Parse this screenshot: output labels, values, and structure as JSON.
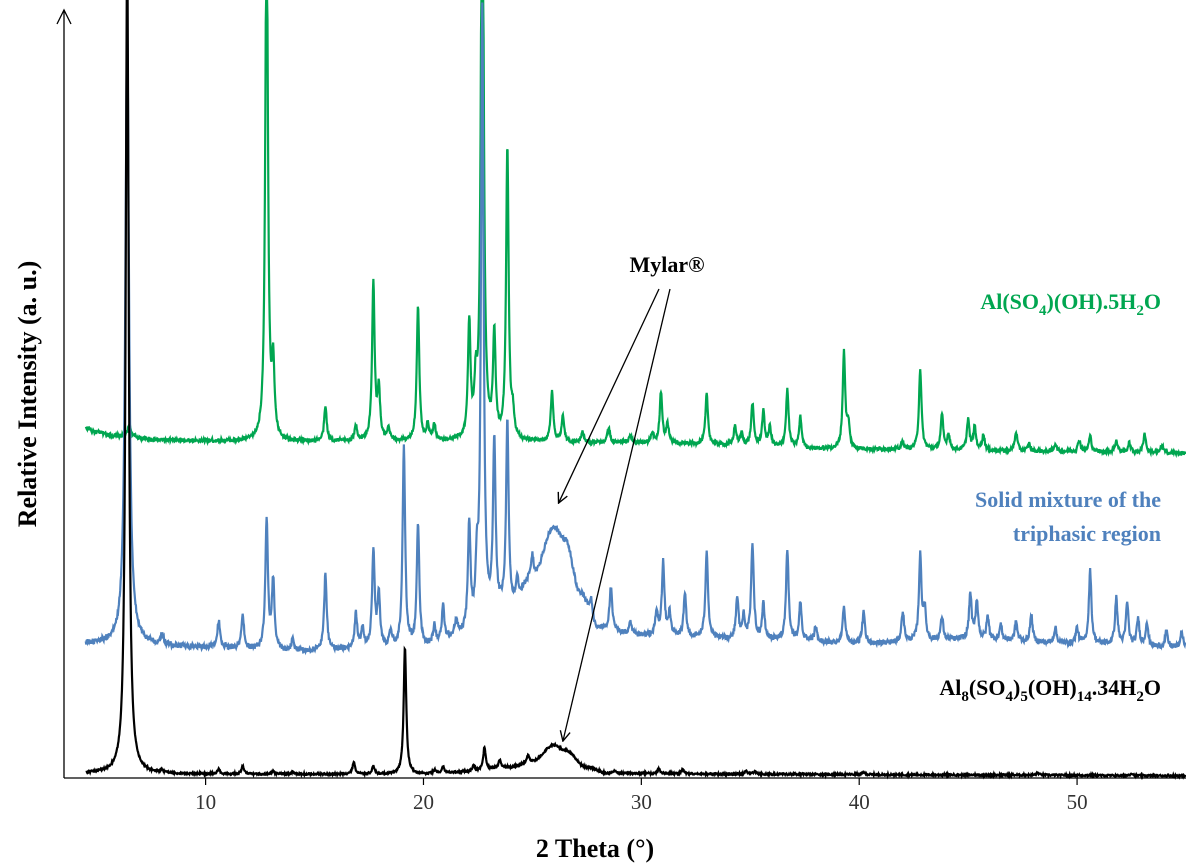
{
  "chart_data": {
    "type": "line",
    "xlabel": "2 Theta (°)",
    "ylabel": "Relative Intensity (a. u.)",
    "xlim": [
      3.5,
      55
    ],
    "ylim": [
      0,
      100
    ],
    "x_ticks": [
      10,
      20,
      30,
      40,
      50
    ],
    "y_ticks": [],
    "grid": false,
    "legend": "none",
    "series": [
      {
        "name": "Al(SO4)(OH).5H2O",
        "color": "#00a650",
        "baseline": [
          [
            4.5,
            45.6
          ],
          [
            5,
            45.0
          ],
          [
            6,
            44.5
          ],
          [
            8,
            44.0
          ],
          [
            10,
            43.9
          ],
          [
            12,
            43.8
          ],
          [
            20,
            43.8
          ],
          [
            30,
            43.6
          ],
          [
            40,
            42.8
          ],
          [
            50,
            42.5
          ],
          [
            55,
            42.3
          ]
        ],
        "noise": 0.25,
        "peaks": [
          [
            6.5,
            1.6,
            0.08
          ],
          [
            12.8,
            72,
            0.07
          ],
          [
            13.1,
            9,
            0.07
          ],
          [
            15.5,
            4.5,
            0.07
          ],
          [
            16.9,
            2,
            0.07
          ],
          [
            17.7,
            20.5,
            0.07
          ],
          [
            17.95,
            6.5,
            0.07
          ],
          [
            18.4,
            1.5,
            0.07
          ],
          [
            19.75,
            17.5,
            0.07
          ],
          [
            20.2,
            2,
            0.07
          ],
          [
            20.5,
            2,
            0.07
          ],
          [
            22.1,
            15,
            0.07
          ],
          [
            22.4,
            6,
            0.07
          ],
          [
            22.7,
            90,
            0.07
          ],
          [
            23.25,
            13.5,
            0.07
          ],
          [
            23.85,
            38,
            0.07
          ],
          [
            24.1,
            3,
            0.07
          ],
          [
            25.9,
            6.5,
            0.07
          ],
          [
            26.4,
            3.5,
            0.07
          ],
          [
            27.3,
            1.5,
            0.07
          ],
          [
            28.5,
            2.0,
            0.07
          ],
          [
            29.5,
            1.0,
            0.07
          ],
          [
            30.5,
            1.2,
            0.07
          ],
          [
            30.9,
            6.5,
            0.07
          ],
          [
            31.2,
            2.5,
            0.07
          ],
          [
            33.0,
            6.5,
            0.07
          ],
          [
            34.3,
            2.5,
            0.07
          ],
          [
            34.6,
            1.5,
            0.07
          ],
          [
            35.1,
            5.5,
            0.07
          ],
          [
            35.6,
            4.5,
            0.07
          ],
          [
            35.9,
            2.5,
            0.07
          ],
          [
            36.7,
            7.5,
            0.07
          ],
          [
            37.3,
            4.0,
            0.07
          ],
          [
            39.3,
            12.5,
            0.07
          ],
          [
            39.5,
            3.0,
            0.07
          ],
          [
            42.0,
            1.0,
            0.07
          ],
          [
            42.8,
            10.5,
            0.07
          ],
          [
            43.8,
            4.5,
            0.07
          ],
          [
            44.1,
            2.0,
            0.07
          ],
          [
            45.0,
            4.0,
            0.07
          ],
          [
            45.3,
            3.0,
            0.07
          ],
          [
            45.7,
            2.0,
            0.07
          ],
          [
            47.2,
            2.5,
            0.07
          ],
          [
            47.8,
            1.0,
            0.07
          ],
          [
            49.0,
            1.0,
            0.07
          ],
          [
            50.1,
            1.5,
            0.07
          ],
          [
            50.6,
            2.0,
            0.07
          ],
          [
            51.8,
            1.5,
            0.07
          ],
          [
            52.4,
            1.2,
            0.07
          ],
          [
            53.1,
            2.5,
            0.07
          ],
          [
            53.9,
            1.0,
            0.07
          ]
        ]
      },
      {
        "name": "Solid mixture of the triphasic region",
        "color": "#4f81bd",
        "baseline": [
          [
            4.5,
            17.5
          ],
          [
            6,
            17.5
          ],
          [
            10,
            17.0
          ],
          [
            14,
            16.5
          ],
          [
            18,
            16.8
          ],
          [
            20,
            17.0
          ],
          [
            22,
            18.5
          ],
          [
            24,
            22.0
          ],
          [
            25,
            26.0
          ],
          [
            26.0,
            32.5
          ],
          [
            26.5,
            31.0
          ],
          [
            27.2,
            24.0
          ],
          [
            28,
            19.5
          ],
          [
            30,
            18.5
          ],
          [
            35,
            18.0
          ],
          [
            40,
            17.5
          ],
          [
            45,
            18.0
          ],
          [
            50,
            17.5
          ],
          [
            55,
            17.0
          ]
        ],
        "noise": 0.35,
        "peaks": [
          [
            6.4,
            80,
            0.1
          ],
          [
            8.0,
            1.5,
            0.07
          ],
          [
            10.6,
            3.5,
            0.07
          ],
          [
            11.7,
            4.5,
            0.07
          ],
          [
            12.8,
            17,
            0.07
          ],
          [
            13.1,
            9,
            0.07
          ],
          [
            14.0,
            1.5,
            0.07
          ],
          [
            15.5,
            10,
            0.07
          ],
          [
            16.9,
            4.5,
            0.07
          ],
          [
            17.2,
            2.5,
            0.07
          ],
          [
            17.7,
            12.5,
            0.07
          ],
          [
            17.95,
            7,
            0.07
          ],
          [
            18.5,
            2,
            0.07
          ],
          [
            19.1,
            26,
            0.07
          ],
          [
            19.75,
            16,
            0.07
          ],
          [
            20.5,
            2.5,
            0.07
          ],
          [
            20.9,
            4.5,
            0.07
          ],
          [
            21.5,
            2,
            0.07
          ],
          [
            22.1,
            14,
            0.07
          ],
          [
            22.45,
            7,
            0.07
          ],
          [
            22.7,
            80,
            0.07
          ],
          [
            23.25,
            22.5,
            0.07
          ],
          [
            23.85,
            24,
            0.07
          ],
          [
            24.3,
            3,
            0.07
          ],
          [
            25.0,
            3,
            0.07
          ],
          [
            27.7,
            2.5,
            0.07
          ],
          [
            28.6,
            5.5,
            0.07
          ],
          [
            29.5,
            1.5,
            0.07
          ],
          [
            30.7,
            3.0,
            0.07
          ],
          [
            31.0,
            9.5,
            0.07
          ],
          [
            31.3,
            3,
            0.07
          ],
          [
            32.0,
            5.5,
            0.07
          ],
          [
            33.0,
            11.5,
            0.07
          ],
          [
            34.4,
            5.5,
            0.07
          ],
          [
            34.7,
            3.0,
            0.07
          ],
          [
            35.1,
            12.5,
            0.07
          ],
          [
            35.6,
            4.5,
            0.07
          ],
          [
            36.7,
            12.0,
            0.07
          ],
          [
            37.3,
            5.0,
            0.07
          ],
          [
            38.0,
            2.0,
            0.07
          ],
          [
            39.3,
            5.0,
            0.07
          ],
          [
            40.2,
            4.0,
            0.07
          ],
          [
            42.0,
            4.0,
            0.07
          ],
          [
            42.8,
            11.0,
            0.07
          ],
          [
            43.0,
            4.0,
            0.07
          ],
          [
            43.8,
            3.0,
            0.07
          ],
          [
            45.1,
            6.0,
            0.07
          ],
          [
            45.4,
            5.0,
            0.07
          ],
          [
            45.9,
            3.0,
            0.07
          ],
          [
            46.5,
            2.0,
            0.07
          ],
          [
            47.2,
            2.5,
            0.07
          ],
          [
            47.9,
            3.5,
            0.07
          ],
          [
            49.0,
            2.0,
            0.07
          ],
          [
            50.0,
            2.0,
            0.07
          ],
          [
            50.6,
            9.5,
            0.07
          ],
          [
            51.8,
            6.0,
            0.07
          ],
          [
            52.3,
            5.5,
            0.07
          ],
          [
            52.8,
            3.5,
            0.07
          ],
          [
            53.2,
            3.0,
            0.07
          ],
          [
            54.1,
            2.0,
            0.07
          ],
          [
            54.8,
            2.0,
            0.07
          ]
        ]
      },
      {
        "name": "Al8(SO4)5(OH)14.34H2O",
        "color": "#000000",
        "baseline": [
          [
            4.5,
            0.6
          ],
          [
            10,
            0.5
          ],
          [
            20,
            0.5
          ],
          [
            22,
            0.8
          ],
          [
            24,
            1.4
          ],
          [
            25,
            2.2
          ],
          [
            26.0,
            4.3
          ],
          [
            26.5,
            3.6
          ],
          [
            27.5,
            1.4
          ],
          [
            28.5,
            0.6
          ],
          [
            35,
            0.5
          ],
          [
            45,
            0.4
          ],
          [
            55,
            0.3
          ]
        ],
        "noise": 0.12,
        "peaks": [
          [
            6.4,
            110,
            0.08
          ],
          [
            8.0,
            0.4,
            0.07
          ],
          [
            10.6,
            0.6,
            0.07
          ],
          [
            11.7,
            1.0,
            0.07
          ],
          [
            13.1,
            0.4,
            0.07
          ],
          [
            14.0,
            0.3,
            0.07
          ],
          [
            16.8,
            1.5,
            0.07
          ],
          [
            17.7,
            1.0,
            0.07
          ],
          [
            19.15,
            16.5,
            0.07
          ],
          [
            20.5,
            0.5,
            0.07
          ],
          [
            20.9,
            0.8,
            0.07
          ],
          [
            22.3,
            0.8,
            0.07
          ],
          [
            22.8,
            3.0,
            0.07
          ],
          [
            23.5,
            1.0,
            0.07
          ],
          [
            24.8,
            0.8,
            0.07
          ],
          [
            28.8,
            0.4,
            0.07
          ],
          [
            30.8,
            0.6,
            0.07
          ],
          [
            31.9,
            0.6,
            0.07
          ],
          [
            34.8,
            0.4,
            0.07
          ],
          [
            35.2,
            0.4,
            0.07
          ],
          [
            40.2,
            0.3,
            0.07
          ],
          [
            48.2,
            0.3,
            0.07
          ],
          [
            52.5,
            0.3,
            0.07
          ]
        ]
      }
    ],
    "annotations": {
      "mylar": "Mylar®",
      "green_label": {
        "a": "Al(SO",
        "b": "4",
        "c": ")(OH).5H",
        "d": "2",
        "e": "O"
      },
      "blue_label_line1": "Solid mixture of the",
      "blue_label_line2": "triphasic region",
      "black_label": {
        "a": "Al",
        "b": "8",
        "c": "(SO",
        "d": "4",
        "e": ")",
        "f": "5",
        "g": "(OH)",
        "h": "14",
        "i": ".34H",
        "j": "2",
        "k": "O"
      },
      "mylar_points": [
        [
          26.2,
          35.8
        ],
        [
          26.4,
          4.8
        ]
      ]
    }
  }
}
